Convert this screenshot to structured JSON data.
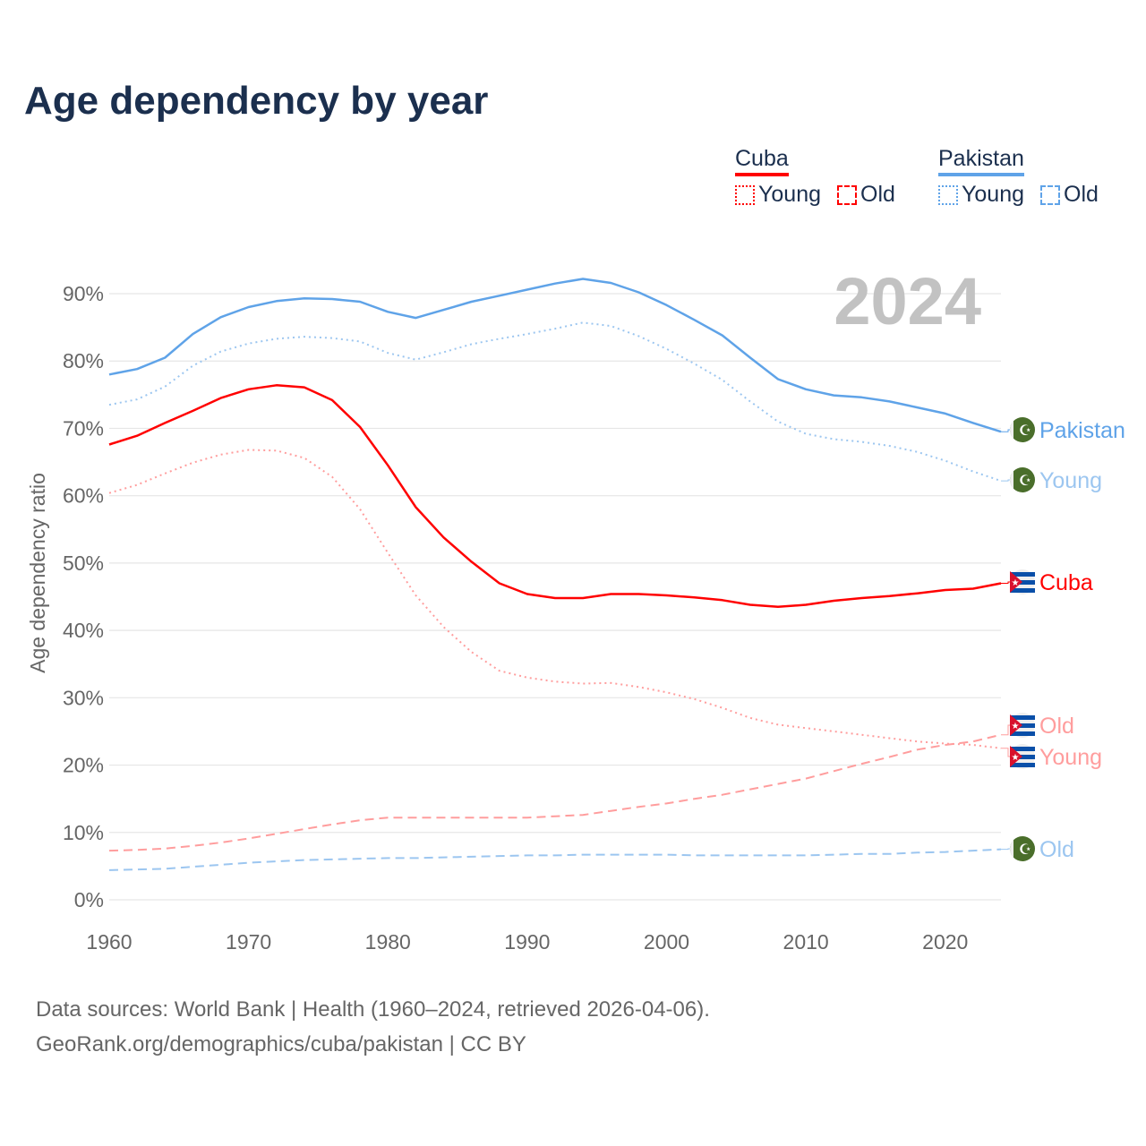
{
  "title": "Age dependency by year",
  "legend": {
    "groups": [
      {
        "country": "Cuba",
        "color": "#ff0000",
        "young_label": "Young",
        "old_label": "Old"
      },
      {
        "country": "Pakistan",
        "color": "#5fa3e8",
        "young_label": "Young",
        "old_label": "Old"
      }
    ]
  },
  "year_watermark": "2024",
  "source": {
    "line1": "Data sources: World Bank | Health (1960–2024, retrieved 2026-04-06).",
    "line2": "GeoRank.org/demographics/cuba/pakistan | CC BY"
  },
  "chart_data": {
    "type": "line",
    "title": "Age dependency by year",
    "xlabel": "",
    "ylabel": "Age dependency ratio",
    "xlim": [
      1960,
      2024
    ],
    "ylim": [
      0,
      90
    ],
    "x_ticks": [
      "1960",
      "1970",
      "1980",
      "1990",
      "2000",
      "2010",
      "2020"
    ],
    "y_ticks": [
      "0%",
      "10%",
      "20%",
      "30%",
      "40%",
      "50%",
      "60%",
      "70%",
      "80%",
      "90%"
    ],
    "grid": true,
    "x": [
      1960,
      1962,
      1964,
      1966,
      1968,
      1970,
      1972,
      1974,
      1976,
      1978,
      1980,
      1982,
      1984,
      1986,
      1988,
      1990,
      1992,
      1994,
      1996,
      1998,
      2000,
      2002,
      2004,
      2006,
      2008,
      2010,
      2012,
      2014,
      2016,
      2018,
      2020,
      2022,
      2024
    ],
    "series": [
      {
        "name": "Pakistan",
        "end_label": "Pakistan",
        "flag": "pakistan",
        "color": "#5fa3e8",
        "style": "solid",
        "values": [
          78.0,
          78.8,
          80.5,
          84.0,
          86.5,
          88.0,
          88.9,
          89.3,
          89.2,
          88.8,
          87.3,
          86.4,
          87.6,
          88.8,
          89.7,
          90.6,
          91.5,
          92.2,
          91.6,
          90.2,
          88.3,
          86.1,
          83.8,
          80.5,
          77.3,
          75.8,
          74.9,
          74.6,
          74.0,
          73.1,
          72.2,
          70.8,
          69.5
        ]
      },
      {
        "name": "Pakistan Young",
        "end_label": "Young",
        "flag": "pakistan",
        "color": "#9cc6f0",
        "style": "dotted",
        "values": [
          73.5,
          74.3,
          76.2,
          79.3,
          81.4,
          82.6,
          83.3,
          83.6,
          83.4,
          82.9,
          81.2,
          80.2,
          81.3,
          82.5,
          83.3,
          84.0,
          84.8,
          85.7,
          85.2,
          83.7,
          81.8,
          79.6,
          77.2,
          74.0,
          71.0,
          69.2,
          68.4,
          68.0,
          67.4,
          66.5,
          65.2,
          63.6,
          62.2
        ]
      },
      {
        "name": "Cuba",
        "end_label": "Cuba",
        "flag": "cuba",
        "color": "#ff0000",
        "style": "solid",
        "values": [
          67.6,
          68.9,
          70.8,
          72.6,
          74.5,
          75.8,
          76.4,
          76.1,
          74.2,
          70.2,
          64.5,
          58.3,
          53.8,
          50.2,
          47.0,
          45.4,
          44.8,
          44.8,
          45.4,
          45.4,
          45.2,
          44.9,
          44.5,
          43.8,
          43.5,
          43.8,
          44.4,
          44.8,
          45.1,
          45.5,
          46.0,
          46.2,
          47.0
        ]
      },
      {
        "name": "Cuba Old",
        "end_label": "Old",
        "flag": "cuba",
        "color": "#ff9d9d",
        "style": "dashed",
        "values": [
          7.3,
          7.4,
          7.6,
          8.0,
          8.5,
          9.1,
          9.8,
          10.5,
          11.2,
          11.8,
          12.2,
          12.2,
          12.2,
          12.2,
          12.2,
          12.2,
          12.4,
          12.6,
          13.2,
          13.8,
          14.3,
          15.0,
          15.6,
          16.4,
          17.2,
          18.0,
          19.1,
          20.2,
          21.2,
          22.3,
          23.0,
          23.5,
          24.5
        ]
      },
      {
        "name": "Cuba Young",
        "end_label": "Young",
        "flag": "cuba",
        "color": "#ff9d9d",
        "style": "dotted",
        "values": [
          60.4,
          61.6,
          63.3,
          64.9,
          66.1,
          66.8,
          66.7,
          65.6,
          62.8,
          58.0,
          51.5,
          45.2,
          40.5,
          36.8,
          34.0,
          33.0,
          32.4,
          32.1,
          32.2,
          31.6,
          30.8,
          29.8,
          28.5,
          27.0,
          26.0,
          25.5,
          25.0,
          24.5,
          24.0,
          23.5,
          23.2,
          23.0,
          22.5
        ]
      },
      {
        "name": "Pakistan Old",
        "end_label": "Old",
        "flag": "pakistan",
        "color": "#9cc6f0",
        "style": "dashed",
        "values": [
          4.4,
          4.5,
          4.6,
          4.9,
          5.2,
          5.5,
          5.7,
          5.9,
          6.0,
          6.1,
          6.2,
          6.2,
          6.3,
          6.4,
          6.5,
          6.6,
          6.6,
          6.7,
          6.7,
          6.7,
          6.7,
          6.6,
          6.6,
          6.6,
          6.6,
          6.6,
          6.7,
          6.8,
          6.8,
          7.0,
          7.1,
          7.3,
          7.5
        ]
      }
    ]
  }
}
